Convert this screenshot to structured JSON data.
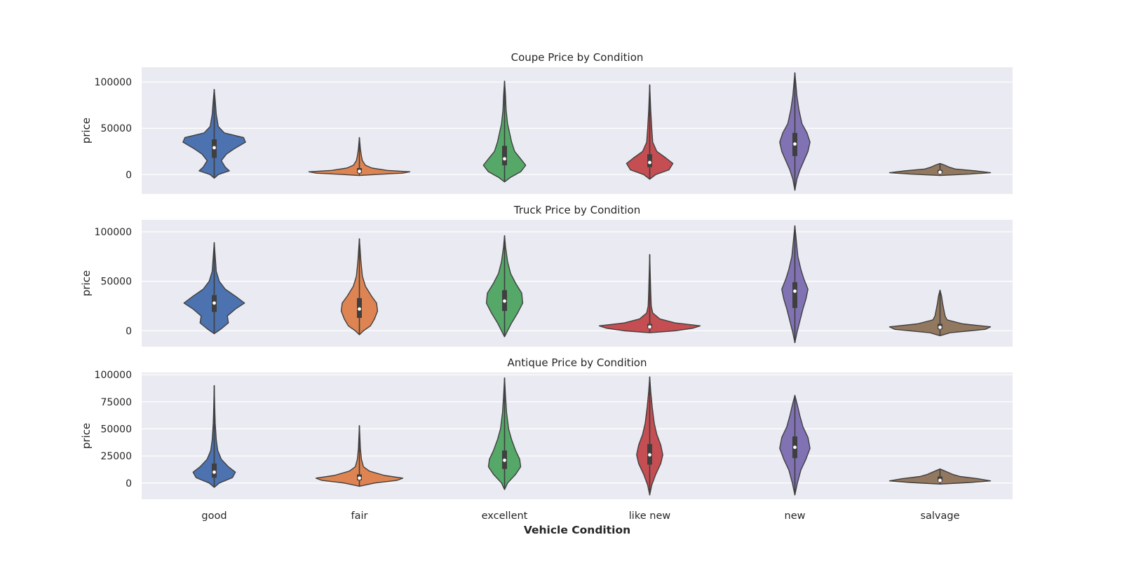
{
  "xlabel": "Vehicle Condition",
  "chart_data": [
    {
      "type": "violin",
      "title": "Coupe Price by Condition",
      "ylabel": "price",
      "ylim": [
        -21000,
        116000
      ],
      "yticks": [
        0,
        50000,
        100000
      ],
      "categories": [
        "good",
        "fair",
        "excellent",
        "like new",
        "new",
        "salvage"
      ],
      "series": [
        {
          "category": "good",
          "color": "#4C72B0",
          "min": -4000,
          "max": 92000,
          "q1": 18000,
          "median": 29000,
          "q3": 38000,
          "profile": [
            [
              -4000,
              0
            ],
            [
              0,
              0.08
            ],
            [
              4000,
              0.3
            ],
            [
              8000,
              0.22
            ],
            [
              15000,
              0.14
            ],
            [
              22000,
              0.24
            ],
            [
              28000,
              0.4
            ],
            [
              35000,
              0.62
            ],
            [
              40000,
              0.58
            ],
            [
              45000,
              0.2
            ],
            [
              52000,
              0.08
            ],
            [
              65000,
              0.04
            ],
            [
              80000,
              0.02
            ],
            [
              92000,
              0
            ]
          ]
        },
        {
          "category": "fair",
          "color": "#DD8452",
          "min": -1000,
          "max": 40000,
          "q1": 1500,
          "median": 3500,
          "q3": 7000,
          "profile": [
            [
              -1000,
              0
            ],
            [
              0,
              0.3
            ],
            [
              1500,
              0.85
            ],
            [
              3000,
              1.0
            ],
            [
              4500,
              0.55
            ],
            [
              7000,
              0.25
            ],
            [
              10000,
              0.12
            ],
            [
              15000,
              0.06
            ],
            [
              20000,
              0.04
            ],
            [
              28000,
              0.02
            ],
            [
              40000,
              0
            ]
          ]
        },
        {
          "category": "excellent",
          "color": "#55A868",
          "min": -8000,
          "max": 101000,
          "q1": 10000,
          "median": 17000,
          "q3": 31000,
          "profile": [
            [
              -8000,
              0
            ],
            [
              -3000,
              0.12
            ],
            [
              3000,
              0.32
            ],
            [
              10000,
              0.42
            ],
            [
              17000,
              0.32
            ],
            [
              25000,
              0.2
            ],
            [
              35000,
              0.14
            ],
            [
              45000,
              0.1
            ],
            [
              55000,
              0.06
            ],
            [
              70000,
              0.03
            ],
            [
              85000,
              0.02
            ],
            [
              101000,
              0
            ]
          ]
        },
        {
          "category": "like new",
          "color": "#C44E52",
          "min": -5000,
          "max": 97000,
          "q1": 8000,
          "median": 13000,
          "q3": 22000,
          "profile": [
            [
              -5000,
              0
            ],
            [
              0,
              0.12
            ],
            [
              5000,
              0.38
            ],
            [
              12000,
              0.46
            ],
            [
              18000,
              0.32
            ],
            [
              25000,
              0.14
            ],
            [
              35000,
              0.06
            ],
            [
              50000,
              0.04
            ],
            [
              70000,
              0.02
            ],
            [
              97000,
              0
            ]
          ]
        },
        {
          "category": "new",
          "color": "#8172B3",
          "min": -17000,
          "max": 110000,
          "q1": 20000,
          "median": 33000,
          "q3": 45000,
          "profile": [
            [
              -17000,
              0
            ],
            [
              -5000,
              0.04
            ],
            [
              5000,
              0.1
            ],
            [
              15000,
              0.18
            ],
            [
              25000,
              0.26
            ],
            [
              35000,
              0.3
            ],
            [
              45000,
              0.24
            ],
            [
              55000,
              0.14
            ],
            [
              70000,
              0.08
            ],
            [
              85000,
              0.04
            ],
            [
              110000,
              0
            ]
          ]
        },
        {
          "category": "salvage",
          "color": "#937860",
          "min": -1000,
          "max": 12000,
          "q1": 1500,
          "median": 2500,
          "q3": 5000,
          "profile": [
            [
              -1000,
              0
            ],
            [
              500,
              0.6
            ],
            [
              2000,
              1.0
            ],
            [
              4000,
              0.7
            ],
            [
              6000,
              0.3
            ],
            [
              8000,
              0.18
            ],
            [
              10000,
              0.1
            ],
            [
              12000,
              0
            ]
          ]
        }
      ]
    },
    {
      "type": "violin",
      "title": "Truck Price by Condition",
      "ylabel": "price",
      "ylim": [
        -16000,
        112000
      ],
      "yticks": [
        0,
        50000,
        100000
      ],
      "categories": [
        "good",
        "fair",
        "excellent",
        "like new",
        "new",
        "salvage"
      ],
      "series": [
        {
          "category": "good",
          "color": "#4C72B0",
          "min": -3000,
          "max": 89000,
          "q1": 19000,
          "median": 28000,
          "q3": 36000,
          "profile": [
            [
              -3000,
              0
            ],
            [
              2000,
              0.14
            ],
            [
              8000,
              0.28
            ],
            [
              15000,
              0.26
            ],
            [
              22000,
              0.42
            ],
            [
              28000,
              0.6
            ],
            [
              35000,
              0.42
            ],
            [
              42000,
              0.22
            ],
            [
              50000,
              0.1
            ],
            [
              60000,
              0.04
            ],
            [
              75000,
              0.02
            ],
            [
              89000,
              0
            ]
          ]
        },
        {
          "category": "fair",
          "color": "#DD8452",
          "min": -4000,
          "max": 93000,
          "q1": 13000,
          "median": 22000,
          "q3": 33000,
          "profile": [
            [
              -4000,
              0
            ],
            [
              0,
              0.08
            ],
            [
              5000,
              0.22
            ],
            [
              12000,
              0.3
            ],
            [
              20000,
              0.36
            ],
            [
              28000,
              0.34
            ],
            [
              35000,
              0.24
            ],
            [
              45000,
              0.12
            ],
            [
              55000,
              0.06
            ],
            [
              70000,
              0.03
            ],
            [
              93000,
              0
            ]
          ]
        },
        {
          "category": "excellent",
          "color": "#55A868",
          "min": -6000,
          "max": 96000,
          "q1": 20000,
          "median": 30000,
          "q3": 41000,
          "profile": [
            [
              -6000,
              0
            ],
            [
              0,
              0.06
            ],
            [
              8000,
              0.14
            ],
            [
              18000,
              0.26
            ],
            [
              28000,
              0.36
            ],
            [
              38000,
              0.34
            ],
            [
              48000,
              0.22
            ],
            [
              58000,
              0.12
            ],
            [
              70000,
              0.06
            ],
            [
              85000,
              0.02
            ],
            [
              96000,
              0
            ]
          ]
        },
        {
          "category": "like new",
          "color": "#C44E52",
          "min": -2000,
          "max": 77000,
          "q1": 2500,
          "median": 4000,
          "q3": 7000,
          "profile": [
            [
              -2000,
              0
            ],
            [
              0,
              0.5
            ],
            [
              2500,
              0.85
            ],
            [
              5000,
              1.0
            ],
            [
              8000,
              0.5
            ],
            [
              12000,
              0.2
            ],
            [
              18000,
              0.06
            ],
            [
              25000,
              0.03
            ],
            [
              40000,
              0.02
            ],
            [
              77000,
              0
            ]
          ]
        },
        {
          "category": "new",
          "color": "#8172B3",
          "min": -12000,
          "max": 106000,
          "q1": 23000,
          "median": 40000,
          "q3": 49000,
          "profile": [
            [
              -12000,
              0
            ],
            [
              -2000,
              0.04
            ],
            [
              10000,
              0.1
            ],
            [
              22000,
              0.16
            ],
            [
              32000,
              0.22
            ],
            [
              42000,
              0.26
            ],
            [
              52000,
              0.18
            ],
            [
              62000,
              0.12
            ],
            [
              75000,
              0.06
            ],
            [
              90000,
              0.03
            ],
            [
              106000,
              0
            ]
          ]
        },
        {
          "category": "salvage",
          "color": "#937860",
          "min": -5000,
          "max": 41000,
          "q1": 1500,
          "median": 3500,
          "q3": 7000,
          "profile": [
            [
              -5000,
              0
            ],
            [
              -2000,
              0.2
            ],
            [
              1500,
              0.9
            ],
            [
              4000,
              1.0
            ],
            [
              7000,
              0.45
            ],
            [
              11000,
              0.14
            ],
            [
              15000,
              0.1
            ],
            [
              20000,
              0.08
            ],
            [
              28000,
              0.05
            ],
            [
              35000,
              0.03
            ],
            [
              41000,
              0
            ]
          ]
        }
      ]
    },
    {
      "type": "violin",
      "title": "Antique Price by Condition",
      "ylabel": "price",
      "ylim": [
        -15000,
        102000
      ],
      "yticks": [
        0,
        25000,
        50000,
        75000,
        100000
      ],
      "categories": [
        "good",
        "fair",
        "excellent",
        "like new",
        "new",
        "salvage"
      ],
      "series": [
        {
          "category": "good",
          "color": "#4C72B0",
          "min": -4000,
          "max": 90000,
          "q1": 5000,
          "median": 10000,
          "q3": 18000,
          "profile": [
            [
              -4000,
              0
            ],
            [
              0,
              0.1
            ],
            [
              5000,
              0.36
            ],
            [
              10000,
              0.42
            ],
            [
              15000,
              0.28
            ],
            [
              22000,
              0.14
            ],
            [
              30000,
              0.07
            ],
            [
              40000,
              0.04
            ],
            [
              55000,
              0.02
            ],
            [
              70000,
              0.01
            ],
            [
              90000,
              0
            ]
          ]
        },
        {
          "category": "fair",
          "color": "#DD8452",
          "min": -3000,
          "max": 53000,
          "q1": 2500,
          "median": 4500,
          "q3": 8000,
          "profile": [
            [
              -3000,
              0
            ],
            [
              0,
              0.3
            ],
            [
              2500,
              0.75
            ],
            [
              4500,
              0.86
            ],
            [
              7000,
              0.5
            ],
            [
              11000,
              0.2
            ],
            [
              15000,
              0.08
            ],
            [
              22000,
              0.04
            ],
            [
              32000,
              0.02
            ],
            [
              53000,
              0
            ]
          ]
        },
        {
          "category": "excellent",
          "color": "#55A868",
          "min": -6000,
          "max": 97000,
          "q1": 13000,
          "median": 21000,
          "q3": 30000,
          "profile": [
            [
              -6000,
              0
            ],
            [
              0,
              0.06
            ],
            [
              8000,
              0.22
            ],
            [
              15000,
              0.32
            ],
            [
              22000,
              0.3
            ],
            [
              30000,
              0.22
            ],
            [
              40000,
              0.14
            ],
            [
              50000,
              0.08
            ],
            [
              65000,
              0.04
            ],
            [
              80000,
              0.02
            ],
            [
              97000,
              0
            ]
          ]
        },
        {
          "category": "like new",
          "color": "#C44E52",
          "min": -11000,
          "max": 98000,
          "q1": 17000,
          "median": 26000,
          "q3": 36000,
          "profile": [
            [
              -11000,
              0
            ],
            [
              -2000,
              0.04
            ],
            [
              8000,
              0.12
            ],
            [
              18000,
              0.22
            ],
            [
              26000,
              0.26
            ],
            [
              35000,
              0.22
            ],
            [
              45000,
              0.14
            ],
            [
              55000,
              0.09
            ],
            [
              70000,
              0.05
            ],
            [
              85000,
              0.02
            ],
            [
              98000,
              0
            ]
          ]
        },
        {
          "category": "new",
          "color": "#8172B3",
          "min": -11000,
          "max": 81000,
          "q1": 23000,
          "median": 33000,
          "q3": 43000,
          "profile": [
            [
              -11000,
              0
            ],
            [
              0,
              0.05
            ],
            [
              12000,
              0.12
            ],
            [
              22000,
              0.22
            ],
            [
              32000,
              0.3
            ],
            [
              42000,
              0.26
            ],
            [
              52000,
              0.16
            ],
            [
              62000,
              0.1
            ],
            [
              72000,
              0.05
            ],
            [
              81000,
              0
            ]
          ]
        },
        {
          "category": "salvage",
          "color": "#937860",
          "min": -1000,
          "max": 13000,
          "q1": 1500,
          "median": 2500,
          "q3": 6000,
          "profile": [
            [
              -1000,
              0
            ],
            [
              500,
              0.6
            ],
            [
              2000,
              1.0
            ],
            [
              4000,
              0.75
            ],
            [
              6000,
              0.4
            ],
            [
              8000,
              0.25
            ],
            [
              10000,
              0.15
            ],
            [
              13000,
              0
            ]
          ]
        }
      ]
    }
  ]
}
